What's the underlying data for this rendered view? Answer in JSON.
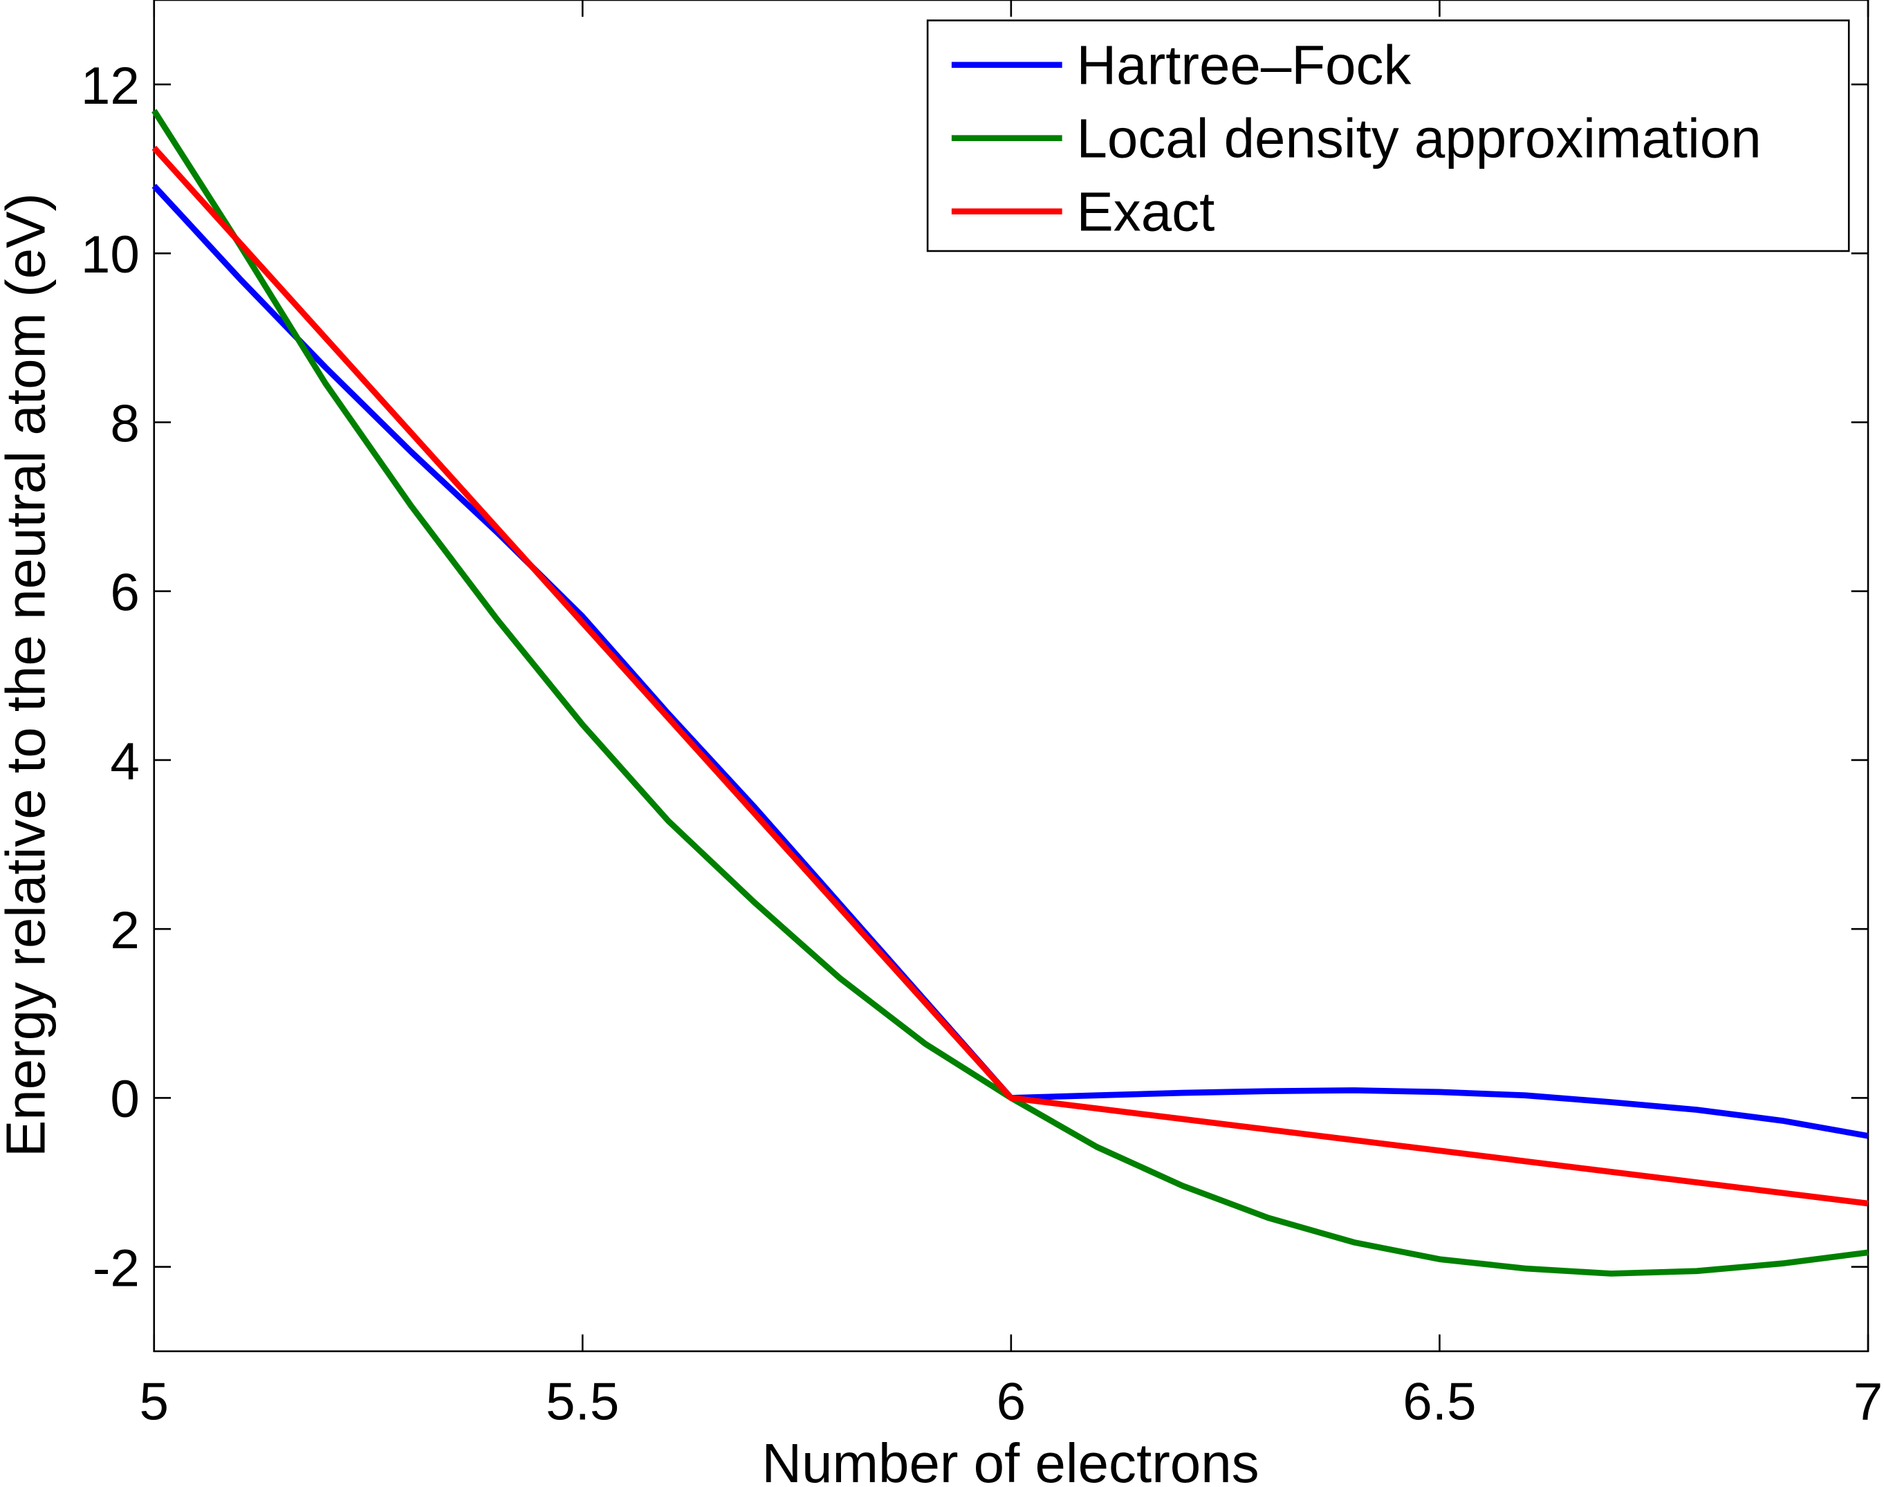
{
  "chart_data": {
    "type": "line",
    "title": "",
    "xlabel": "Number of electrons",
    "ylabel": "Energy relative to the neutral atom (eV)",
    "xlim": [
      5,
      7
    ],
    "ylim": [
      -3,
      13
    ],
    "xticks": [
      5,
      5.5,
      6,
      6.5,
      7
    ],
    "xtick_labels": [
      "5",
      "5.5",
      "6",
      "6.5",
      "7"
    ],
    "yticks": [
      -2,
      0,
      2,
      4,
      6,
      8,
      10,
      12
    ],
    "ytick_labels": [
      "-2",
      "0",
      "2",
      "4",
      "6",
      "8",
      "10",
      "12"
    ],
    "grid": false,
    "legend_position": "top-right",
    "x": [
      5,
      5.1,
      5.2,
      5.3,
      5.4,
      5.5,
      5.6,
      5.7,
      5.8,
      5.9,
      6,
      6.1,
      6.2,
      6.3,
      6.4,
      6.5,
      6.6,
      6.7,
      6.8,
      6.9,
      7
    ],
    "series": [
      {
        "name": "Hartree–Fock",
        "color": "#0000ff",
        "values": [
          10.8,
          9.7,
          8.65,
          7.65,
          6.7,
          5.7,
          4.55,
          3.45,
          2.3,
          1.15,
          0,
          0.03,
          0.06,
          0.08,
          0.09,
          0.07,
          0.03,
          -0.05,
          -0.14,
          -0.27,
          -0.45
        ]
      },
      {
        "name": "Local density approximation",
        "color": "#008000",
        "values": [
          11.69,
          10.1,
          8.46,
          7.01,
          5.67,
          4.42,
          3.28,
          2.32,
          1.42,
          0.64,
          0,
          -0.58,
          -1.04,
          -1.42,
          -1.71,
          -1.91,
          -2.02,
          -2.08,
          -2.05,
          -1.96,
          -1.83
        ]
      },
      {
        "name": "Exact",
        "color": "#ff0000",
        "values": [
          11.25,
          10.125,
          9.0,
          7.875,
          6.75,
          5.625,
          4.5,
          3.375,
          2.25,
          1.125,
          0,
          -0.125,
          -0.25,
          -0.375,
          -0.5,
          -0.625,
          -0.75,
          -0.875,
          -1.0,
          -1.125,
          -1.25
        ]
      }
    ]
  }
}
